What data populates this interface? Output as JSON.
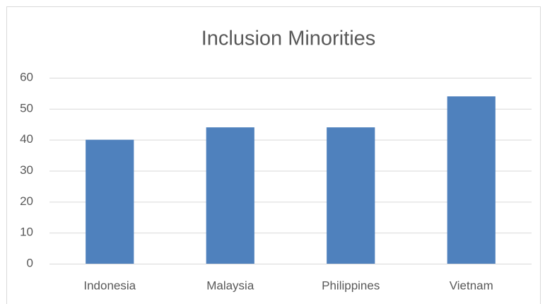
{
  "chart_data": {
    "type": "bar",
    "title": "Inclusion Minorities",
    "categories": [
      "Indonesia",
      "Malaysia",
      "Philippines",
      "Vietnam"
    ],
    "values": [
      40,
      44,
      44,
      54
    ],
    "color": "#4f81bd",
    "ylim": [
      0,
      60
    ],
    "yticks": [
      0,
      10,
      20,
      30,
      40,
      50,
      60
    ],
    "grid": true
  }
}
